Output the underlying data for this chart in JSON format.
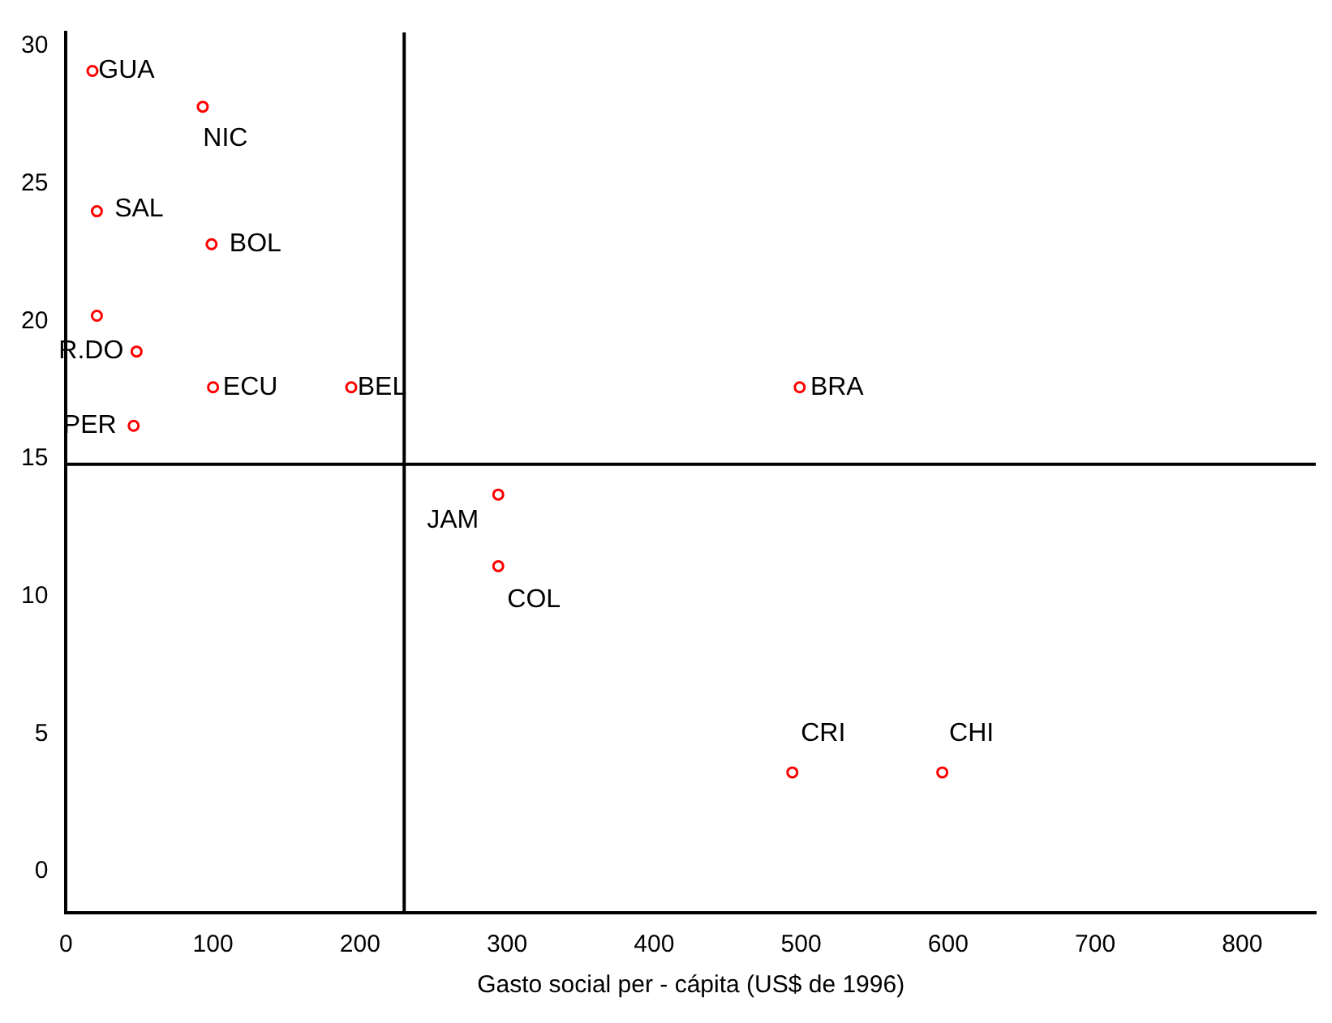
{
  "chart_data": {
    "type": "scatter",
    "xlabel": "Gasto social per - cápita (US$ de 1996)",
    "marker": "circle",
    "series": [
      {
        "name": "GUA",
        "color": "#ff0000",
        "x": [
          18
        ],
        "values": [
          29.1
        ]
      },
      {
        "name": "NIC",
        "color": "#ff0000",
        "x": [
          93
        ],
        "values": [
          27.8
        ]
      },
      {
        "name": "SAL",
        "color": "#ff0000",
        "x": [
          21
        ],
        "values": [
          24.0
        ]
      },
      {
        "name": "BOL",
        "color": "#ff0000",
        "x": [
          99
        ],
        "values": [
          22.8
        ]
      },
      {
        "color": "#ff0000",
        "x": [
          21
        ],
        "values": [
          20.2
        ]
      },
      {
        "name": "R.DO",
        "color": "#ff0000",
        "x": [
          48
        ],
        "values": [
          18.9
        ]
      },
      {
        "name": "ECU",
        "color": "#ff0000",
        "x": [
          100
        ],
        "values": [
          17.6
        ]
      },
      {
        "name": "BEL",
        "color": "#ff0000",
        "x": [
          194
        ],
        "values": [
          17.6
        ]
      },
      {
        "name": "PER",
        "color": "#ff0000",
        "x": [
          46
        ],
        "values": [
          16.2
        ]
      },
      {
        "name": "BRA",
        "color": "#ff0000",
        "x": [
          499
        ],
        "values": [
          17.6
        ]
      },
      {
        "name": "JAM",
        "color": "#ff0000",
        "x": [
          294
        ],
        "values": [
          13.7
        ]
      },
      {
        "name": "COL",
        "color": "#ff0000",
        "x": [
          294
        ],
        "values": [
          11.1
        ]
      },
      {
        "name": "CRI",
        "color": "#ff0000",
        "x": [
          494
        ],
        "values": [
          3.6
        ]
      },
      {
        "name": "CHI",
        "color": "#ff0000",
        "x": [
          596
        ],
        "values": [
          3.6
        ]
      }
    ],
    "xlim": [
      0,
      850
    ],
    "xticks": [
      0,
      100,
      200,
      300,
      400,
      500,
      600,
      700,
      800
    ],
    "ylim": [
      -1.5,
      30.5
    ],
    "yticks": [
      0,
      5,
      10,
      15,
      20,
      25,
      30
    ],
    "ref_lines": [
      {
        "axis": "x",
        "value": 230,
        "color": "#000000"
      },
      {
        "axis": "y",
        "value": 14.8,
        "color": "#000000"
      }
    ]
  }
}
